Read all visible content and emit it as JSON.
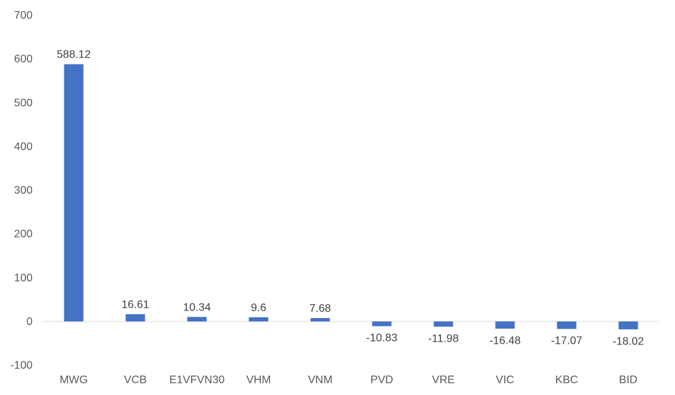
{
  "chart_data": {
    "type": "bar",
    "title": "",
    "xlabel": "",
    "ylabel": "",
    "categories": [
      "MWG",
      "VCB",
      "E1VFVN30",
      "VHM",
      "VNM",
      "PVD",
      "VRE",
      "VIC",
      "KBC",
      "BID"
    ],
    "values": [
      588.12,
      16.61,
      10.34,
      9.6,
      7.68,
      -10.83,
      -11.98,
      -16.48,
      -17.07,
      -18.02
    ],
    "data_labels": [
      "588.12",
      "16.61",
      "10.34",
      "9.6",
      "7.68",
      "-10.83",
      "-11.98",
      "-16.48",
      "-17.07",
      "-18.02"
    ],
    "ylim": [
      -100,
      700
    ],
    "yticks": [
      -100,
      0,
      100,
      200,
      300,
      400,
      500,
      600,
      700
    ],
    "ytick_labels": [
      "-100",
      "0",
      "100",
      "200",
      "300",
      "400",
      "500",
      "600",
      "700"
    ],
    "grid": false,
    "legend": "none",
    "bar_color": "#4472C4",
    "zero_line_color": "#D9D9D9"
  }
}
